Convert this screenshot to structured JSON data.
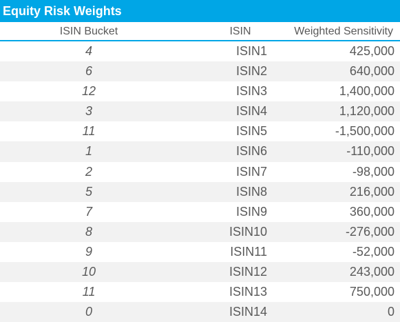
{
  "sheet": {
    "title": "Equity Risk Weights",
    "accent_color": "#00a6e6",
    "alt_row_color": "#f2f2f2",
    "columns": {
      "bucket": "ISIN Bucket",
      "isin": "ISIN",
      "sensitivity": "Weighted Sensitivity"
    },
    "rows": [
      {
        "bucket": "4",
        "isin": "ISIN1",
        "sensitivity": "425,000"
      },
      {
        "bucket": "6",
        "isin": "ISIN2",
        "sensitivity": "640,000"
      },
      {
        "bucket": "12",
        "isin": "ISIN3",
        "sensitivity": "1,400,000"
      },
      {
        "bucket": "3",
        "isin": "ISIN4",
        "sensitivity": "1,120,000"
      },
      {
        "bucket": "11",
        "isin": "ISIN5",
        "sensitivity": "-1,500,000"
      },
      {
        "bucket": "1",
        "isin": "ISIN6",
        "sensitivity": "-110,000"
      },
      {
        "bucket": "2",
        "isin": "ISIN7",
        "sensitivity": "-98,000"
      },
      {
        "bucket": "5",
        "isin": "ISIN8",
        "sensitivity": "216,000"
      },
      {
        "bucket": "7",
        "isin": "ISIN9",
        "sensitivity": "360,000"
      },
      {
        "bucket": "8",
        "isin": "ISIN10",
        "sensitivity": "-276,000"
      },
      {
        "bucket": "9",
        "isin": "ISIN11",
        "sensitivity": "-52,000"
      },
      {
        "bucket": "10",
        "isin": "ISIN12",
        "sensitivity": "243,000"
      },
      {
        "bucket": "11",
        "isin": "ISIN13",
        "sensitivity": "750,000"
      },
      {
        "bucket": "0",
        "isin": "ISIN14",
        "sensitivity": "0"
      }
    ]
  }
}
